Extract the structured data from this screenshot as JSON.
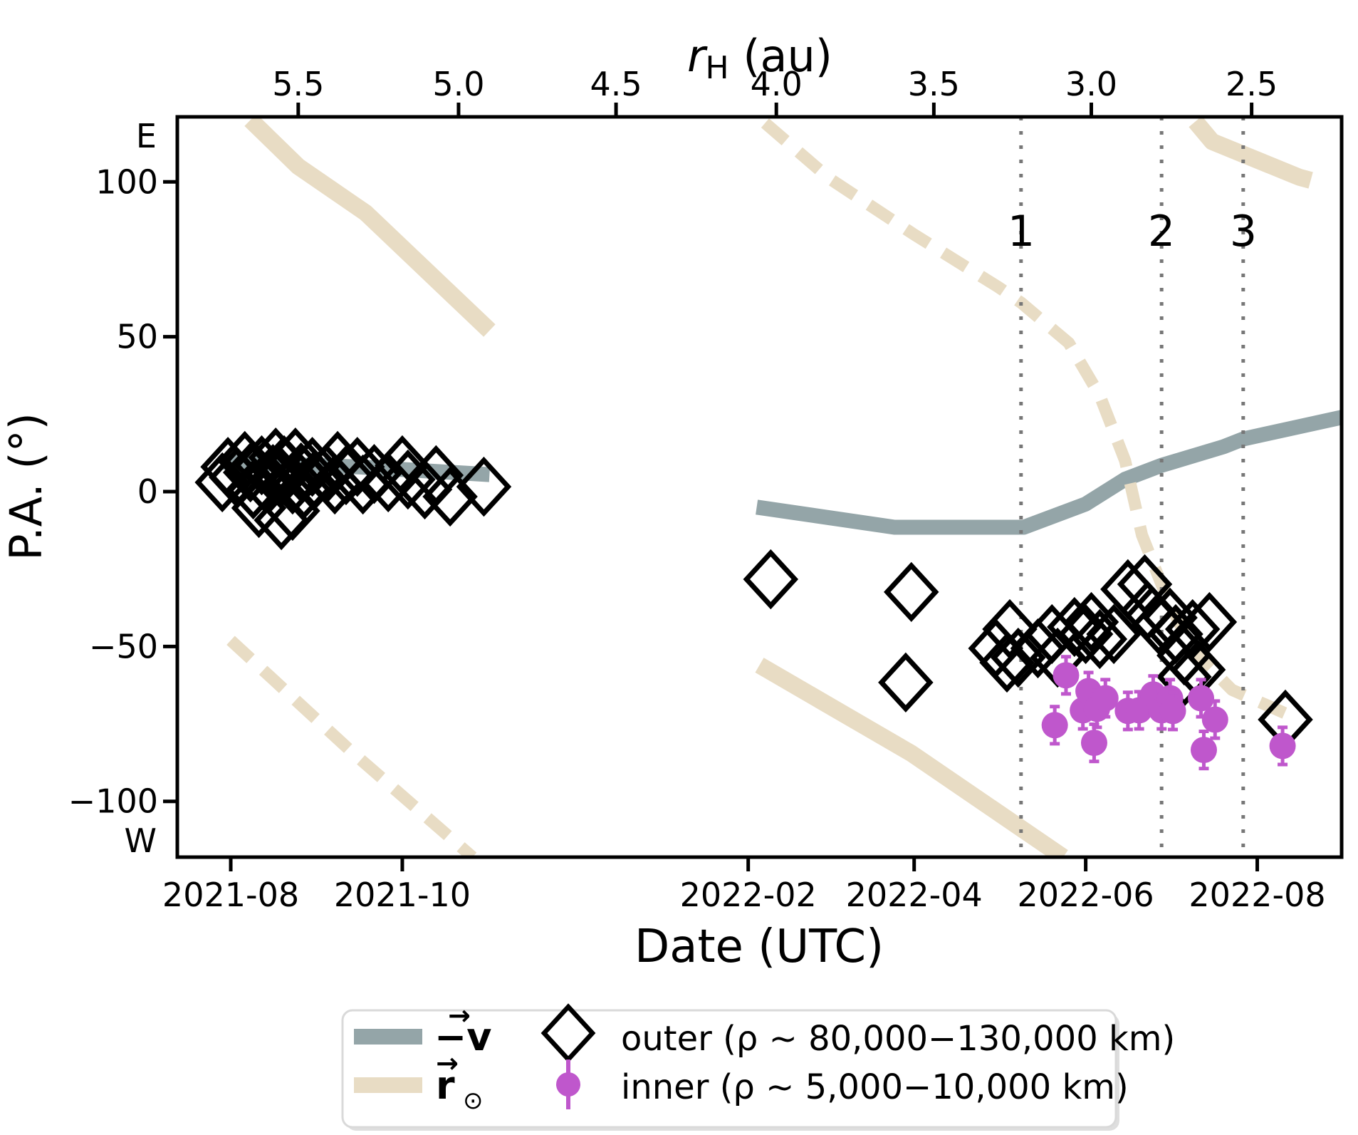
{
  "figure": {
    "top_axis": {
      "label_r": "r",
      "label_sub": "H",
      "label_rest": " (au)",
      "ticks": [
        {
          "label": "5.5",
          "date": "2021-08-25"
        },
        {
          "label": "5.0",
          "date": "2021-10-21"
        },
        {
          "label": "4.5",
          "date": "2021-12-16"
        },
        {
          "label": "4.0",
          "date": "2022-02-11"
        },
        {
          "label": "3.5",
          "date": "2022-04-08"
        },
        {
          "label": "3.0",
          "date": "2022-06-03"
        },
        {
          "label": "2.5",
          "date": "2022-07-30"
        }
      ]
    },
    "x_axis": {
      "label": "Date (UTC)",
      "ticks": [
        {
          "label": "2021-08",
          "date": "2021-08-01"
        },
        {
          "label": "2021-10",
          "date": "2021-10-01"
        },
        {
          "label": "2022-02",
          "date": "2022-02-01"
        },
        {
          "label": "2022-04",
          "date": "2022-04-01"
        },
        {
          "label": "2022-06",
          "date": "2022-06-01"
        },
        {
          "label": "2022-08",
          "date": "2022-08-01"
        }
      ]
    },
    "y_axis": {
      "label": "P.A. (°)",
      "ticks": [
        {
          "label": "100",
          "value": 100
        },
        {
          "label": "50",
          "value": 50
        },
        {
          "label": "0",
          "value": 0
        },
        {
          "label": "−50",
          "value": -50
        },
        {
          "label": "−100",
          "value": -100
        }
      ],
      "annotations": [
        {
          "label": "E",
          "value": 114.5
        },
        {
          "label": "W",
          "value": -113
        }
      ]
    },
    "event_lines": [
      {
        "label": "1",
        "date": "2022-05-09"
      },
      {
        "label": "2",
        "date": "2022-06-28"
      },
      {
        "label": "3",
        "date": "2022-07-27"
      }
    ],
    "colors": {
      "minus_v": "#94a5a8",
      "r_sun": "#e8dcc4",
      "inner": "#bf57cc",
      "outer": "#000000",
      "event_line": "#777777",
      "axis": "#000000",
      "legend_border": "#d9d9d9"
    }
  },
  "legend": {
    "minus_v": {
      "prefix": "−",
      "letter": "v",
      "arrow": "→",
      "sub": ""
    },
    "r_sun": {
      "prefix": "",
      "letter": "r",
      "arrow": "→",
      "sub": "⊙"
    },
    "outer_label": "outer (ρ ∼ 80,000−130,000 km)",
    "inner_label": "inner (ρ ∼ 5,000−10,000 km)"
  },
  "chart_data": {
    "type": "scatter",
    "title": "",
    "xlabel": "Date (UTC)",
    "ylabel": "P.A. (°)",
    "x_range": [
      "2021-07-13",
      "2022-08-31"
    ],
    "y_range": [
      -118,
      121
    ],
    "grid": false,
    "legend_position": "bottom",
    "series": [
      {
        "name": "minus_v",
        "type": "line",
        "segments": [
          [
            [
              "2021-07-29",
              9.5
            ],
            [
              "2021-09-15",
              8.0
            ],
            [
              "2021-11-01",
              5.5
            ]
          ],
          [
            [
              "2022-02-04",
              -5.0
            ],
            [
              "2022-03-25",
              -11.5
            ],
            [
              "2022-05-10",
              -11.5
            ],
            [
              "2022-06-01",
              -4.0
            ],
            [
              "2022-06-15",
              4.0
            ],
            [
              "2022-06-28",
              8.5
            ],
            [
              "2022-07-20",
              14.5
            ],
            [
              "2022-07-27",
              17.0
            ],
            [
              "2022-08-31",
              24.0
            ]
          ]
        ]
      },
      {
        "name": "r_sun",
        "type": "line",
        "segments": [
          [
            [
              "2021-08-08",
              120.0
            ],
            [
              "2021-08-25",
              105.0
            ],
            [
              "2021-09-18",
              90.0
            ],
            [
              "2021-11-01",
              52.0
            ]
          ],
          [
            [
              "2022-02-05",
              -56.0
            ],
            [
              "2022-03-31",
              -84.5
            ],
            [
              "2022-05-24",
              -118.0
            ]
          ],
          [
            [
              "2022-07-10",
              119.5
            ],
            [
              "2022-07-16",
              113.0
            ],
            [
              "2022-08-16",
              101.5
            ],
            [
              "2022-08-20",
              100.5
            ]
          ]
        ]
      },
      {
        "name": "r_sun_dashed",
        "type": "line",
        "segments": [
          [
            [
              "2021-08-01",
              -48.0
            ],
            [
              "2021-09-13",
              -84.0
            ],
            [
              "2021-10-26",
              -118.0
            ]
          ],
          [
            [
              "2022-02-07",
              119.0
            ],
            [
              "2022-03-02",
              101.0
            ],
            [
              "2022-04-01",
              83.0
            ],
            [
              "2022-05-01",
              66.0
            ],
            [
              "2022-05-09",
              61.0
            ],
            [
              "2022-05-26",
              48.0
            ],
            [
              "2022-06-06",
              31.0
            ],
            [
              "2022-06-15",
              10.0
            ],
            [
              "2022-06-21",
              -14.0
            ],
            [
              "2022-06-28",
              -30.0
            ],
            [
              "2022-07-04",
              -42.0
            ],
            [
              "2022-07-10",
              -52.0
            ],
            [
              "2022-07-23",
              -64.0
            ],
            [
              "2022-08-02",
              -68.0
            ],
            [
              "2022-08-12",
              -72.0
            ]
          ]
        ]
      },
      {
        "name": "outer",
        "type": "scatter",
        "points": [
          [
            "2021-07-29",
            3.0
          ],
          [
            "2021-07-31",
            8.0
          ],
          [
            "2021-08-03",
            4.6
          ],
          [
            "2021-08-06",
            9.9
          ],
          [
            "2021-08-08",
            6.2
          ],
          [
            "2021-08-09",
            0.7
          ],
          [
            "2021-08-11",
            -5.3
          ],
          [
            "2021-08-12",
            8.5
          ],
          [
            "2021-08-13",
            3.0
          ],
          [
            "2021-08-16",
            5.7
          ],
          [
            "2021-08-17",
            11.0
          ],
          [
            "2021-08-19",
            4.6
          ],
          [
            "2021-08-19",
            -9.2
          ],
          [
            "2021-08-20",
            8.5
          ],
          [
            "2021-08-23",
            2.3
          ],
          [
            "2021-08-23",
            -6.2
          ],
          [
            "2021-08-24",
            11.0
          ],
          [
            "2021-08-26",
            6.2
          ],
          [
            "2021-08-27",
            0.7
          ],
          [
            "2021-08-30",
            8.0
          ],
          [
            "2021-08-31",
            3.9
          ],
          [
            "2021-09-04",
            5.7
          ],
          [
            "2021-09-07",
            2.3
          ],
          [
            "2021-09-08",
            9.9
          ],
          [
            "2021-09-11",
            5.3
          ],
          [
            "2021-09-15",
            8.0
          ],
          [
            "2021-09-17",
            2.3
          ],
          [
            "2021-09-21",
            5.7
          ],
          [
            "2021-09-26",
            3.0
          ],
          [
            "2021-10-01",
            8.5
          ],
          [
            "2021-10-03",
            3.9
          ],
          [
            "2021-10-09",
            0.7
          ],
          [
            "2021-10-13",
            5.3
          ],
          [
            "2021-10-18",
            -1.6
          ],
          [
            "2021-10-30",
            1.6
          ],
          [
            "2022-02-09",
            -28.3
          ],
          [
            "2022-03-29",
            -61.6
          ],
          [
            "2022-03-31",
            -32.4
          ],
          [
            "2022-04-30",
            -50.6
          ],
          [
            "2022-05-04",
            -55.2
          ],
          [
            "2022-05-05",
            -44.4
          ],
          [
            "2022-05-08",
            -53.6
          ],
          [
            "2022-05-15",
            -50.6
          ],
          [
            "2022-05-20",
            -46.0
          ],
          [
            "2022-05-22",
            -53.6
          ],
          [
            "2022-05-28",
            -43.7
          ],
          [
            "2022-06-01",
            -46.0
          ],
          [
            "2022-06-03",
            -42.1
          ],
          [
            "2022-06-06",
            -47.6
          ],
          [
            "2022-06-11",
            -46.0
          ],
          [
            "2022-06-16",
            -31.5
          ],
          [
            "2022-06-22",
            -29.9
          ],
          [
            "2022-06-23",
            -38.4
          ],
          [
            "2022-06-27",
            -43.0
          ],
          [
            "2022-07-01",
            -40.7
          ],
          [
            "2022-07-03",
            -46.0
          ],
          [
            "2022-07-06",
            -52.9
          ],
          [
            "2022-07-06",
            -59.8
          ],
          [
            "2022-07-09",
            -44.4
          ],
          [
            "2022-07-11",
            -57.5
          ],
          [
            "2022-07-15",
            -42.1
          ],
          [
            "2022-08-11",
            -73.6
          ]
        ]
      },
      {
        "name": "inner",
        "type": "scatter",
        "yerr": 6,
        "points": [
          [
            "2022-05-21",
            -75.4
          ],
          [
            "2022-05-25",
            -59.3
          ],
          [
            "2022-05-31",
            -70.6
          ],
          [
            "2022-06-02",
            -64.4
          ],
          [
            "2022-06-04",
            -81.1
          ],
          [
            "2022-06-05",
            -70.1
          ],
          [
            "2022-06-08",
            -66.7
          ],
          [
            "2022-06-16",
            -70.8
          ],
          [
            "2022-06-20",
            -70.6
          ],
          [
            "2022-06-25",
            -65.5
          ],
          [
            "2022-06-28",
            -70.6
          ],
          [
            "2022-07-01",
            -66.7
          ],
          [
            "2022-07-02",
            -70.8
          ],
          [
            "2022-07-12",
            -66.7
          ],
          [
            "2022-07-13",
            -83.4
          ],
          [
            "2022-07-17",
            -73.6
          ],
          [
            "2022-08-10",
            -82.1
          ]
        ]
      }
    ]
  }
}
